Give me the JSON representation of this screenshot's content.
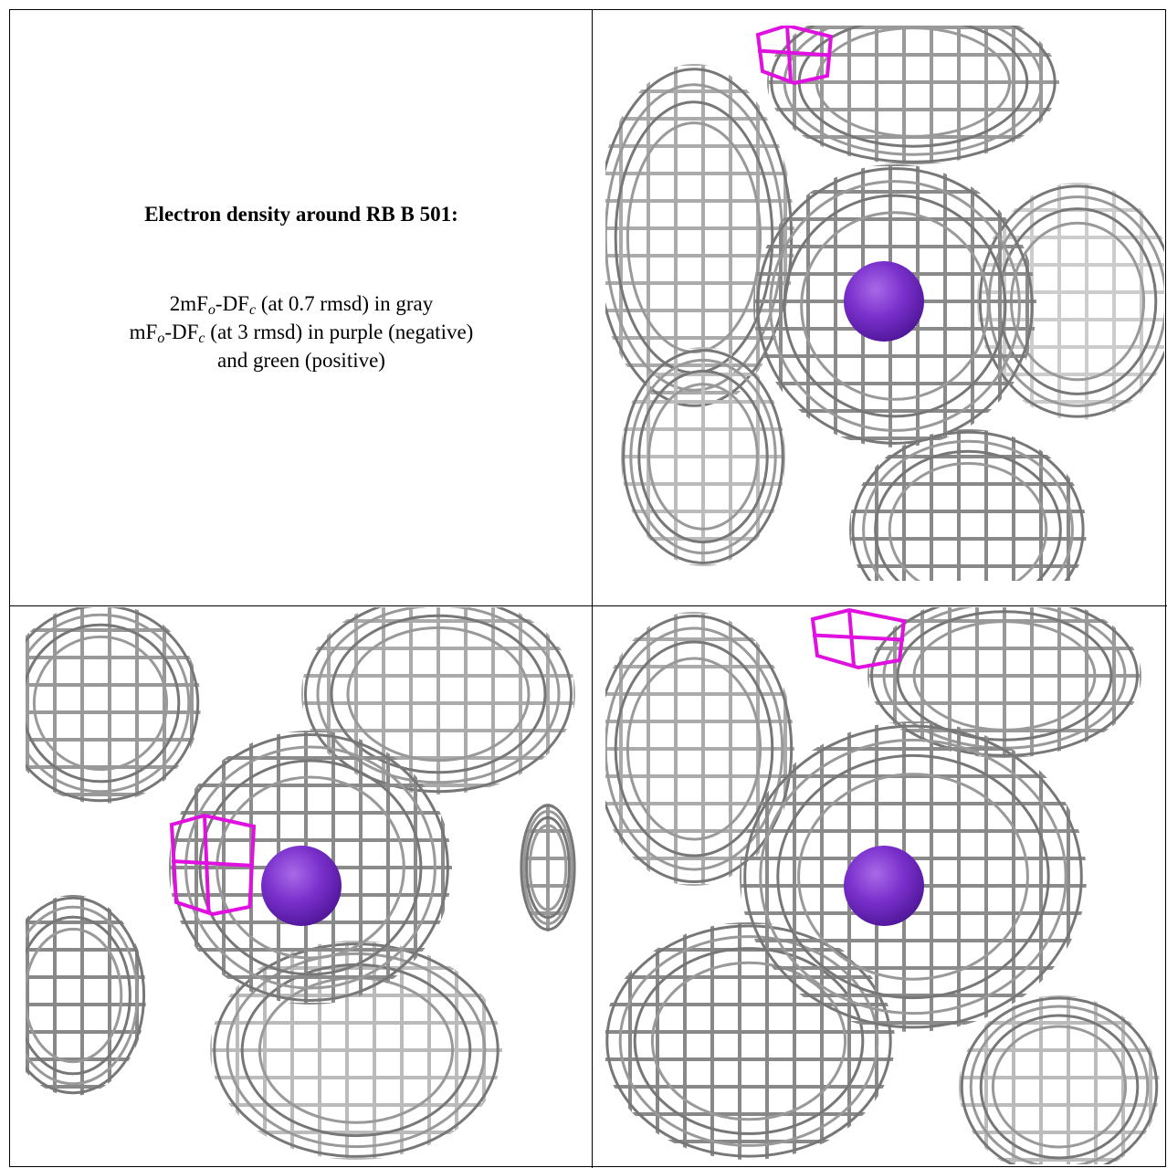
{
  "caption": {
    "title": "Electron density around RB B 501:",
    "lines": [
      [
        {
          "text": "2mF"
        },
        {
          "sub": "o"
        },
        {
          "text": "-DF"
        },
        {
          "sub": "c"
        },
        {
          "text": " (at 0.7 rmsd) in gray"
        }
      ],
      [
        {
          "text": "mF"
        },
        {
          "sub": "o"
        },
        {
          "text": "-DF"
        },
        {
          "sub": "c"
        },
        {
          "text": " (at 3 rmsd) in purple (negative)"
        }
      ],
      [
        {
          "text": "and green (positive)"
        }
      ]
    ]
  }
}
